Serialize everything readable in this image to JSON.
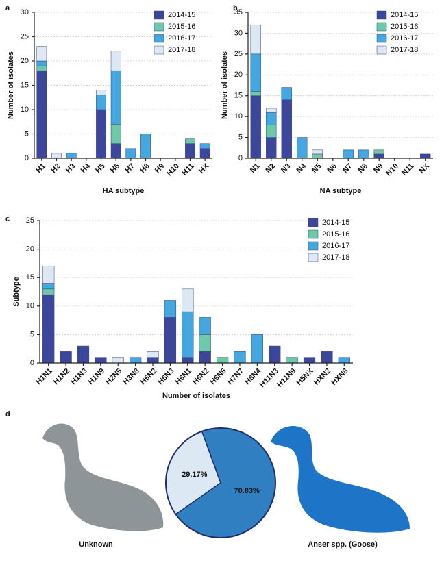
{
  "chart_data": [
    {
      "type": "bar",
      "stacked": true,
      "panel": "a",
      "xlabel": "HA subtype",
      "ylabel": "Number of isolates",
      "categories": [
        "H1",
        "H2",
        "H3",
        "H4",
        "H5",
        "H6",
        "H7",
        "H8",
        "H9",
        "H10",
        "H11",
        "HX"
      ],
      "series": [
        {
          "name": "2014-15",
          "color": "#3c479b",
          "values": [
            18,
            0,
            0,
            0,
            10,
            3,
            0,
            0,
            0,
            0,
            3,
            2
          ]
        },
        {
          "name": "2015-16",
          "color": "#6dc9a9",
          "values": [
            1,
            0,
            0,
            0,
            0,
            4,
            0,
            0,
            0,
            0,
            1,
            0
          ]
        },
        {
          "name": "2016-17",
          "color": "#45a7e0",
          "values": [
            1,
            0,
            1,
            0,
            3,
            11,
            2,
            5,
            0,
            0,
            0,
            1
          ]
        },
        {
          "name": "2017-18",
          "color": "#dde8f5",
          "values": [
            3,
            1,
            0,
            0,
            1,
            4,
            0,
            0,
            0,
            0,
            0,
            0
          ]
        }
      ],
      "ylim": [
        0,
        30
      ],
      "yticks": [
        0,
        5,
        10,
        15,
        20,
        25,
        30
      ],
      "grid": true,
      "legend": "upper right"
    },
    {
      "type": "bar",
      "stacked": true,
      "panel": "b",
      "xlabel": "NA subtype",
      "ylabel": "Number of isolates",
      "categories": [
        "N1",
        "N2",
        "N3",
        "N4",
        "N5",
        "N6",
        "N7",
        "N8",
        "N9",
        "N10",
        "N11",
        "NX"
      ],
      "series": [
        {
          "name": "2014-15",
          "color": "#3c479b",
          "values": [
            15,
            5,
            14,
            0,
            0,
            0,
            0,
            0,
            1,
            0,
            0,
            1
          ]
        },
        {
          "name": "2015-16",
          "color": "#6dc9a9",
          "values": [
            1,
            3,
            0,
            0,
            1,
            0,
            0,
            0,
            1,
            0,
            0,
            0
          ]
        },
        {
          "name": "2016-17",
          "color": "#45a7e0",
          "values": [
            9,
            3,
            3,
            5,
            0,
            0,
            2,
            2,
            0,
            0,
            0,
            0
          ]
        },
        {
          "name": "2017-18",
          "color": "#dde8f5",
          "values": [
            7,
            1,
            0,
            0,
            1,
            0,
            0,
            0,
            0,
            0,
            0,
            0
          ]
        }
      ],
      "ylim": [
        0,
        35
      ],
      "yticks": [
        0,
        5,
        10,
        15,
        20,
        25,
        30,
        35
      ],
      "grid": true,
      "legend": "upper right"
    },
    {
      "type": "bar",
      "stacked": true,
      "panel": "c",
      "xlabel": "Number of isolates",
      "ylabel": "Subtype",
      "categories": [
        "H1N1",
        "H1N2",
        "H1N3",
        "H1N9",
        "H2N5",
        "H3N8",
        "H5N2",
        "H5N3",
        "H6N1",
        "H6N2",
        "H6N5",
        "H7N7",
        "H8N4",
        "H11N3",
        "H11N9",
        "H5NX",
        "HXN2",
        "HXN8"
      ],
      "series": [
        {
          "name": "2014-15",
          "color": "#3c479b",
          "values": [
            12,
            2,
            3,
            1,
            0,
            0,
            1,
            8,
            1,
            2,
            0,
            0,
            0,
            3,
            0,
            1,
            2,
            0
          ]
        },
        {
          "name": "2015-16",
          "color": "#6dc9a9",
          "values": [
            1,
            0,
            0,
            0,
            0,
            0,
            0,
            0,
            0,
            3,
            1,
            0,
            0,
            0,
            1,
            0,
            0,
            0
          ]
        },
        {
          "name": "2016-17",
          "color": "#45a7e0",
          "values": [
            1,
            0,
            0,
            0,
            0,
            1,
            0,
            3,
            8,
            3,
            0,
            2,
            5,
            0,
            0,
            0,
            0,
            1
          ]
        },
        {
          "name": "2017-18",
          "color": "#dde8f5",
          "values": [
            3,
            0,
            0,
            0,
            1,
            0,
            1,
            0,
            4,
            0,
            0,
            0,
            0,
            0,
            0,
            0,
            0,
            0
          ]
        }
      ],
      "ylim": [
        0,
        25
      ],
      "yticks": [
        0,
        5,
        10,
        15,
        20,
        25
      ],
      "grid": true,
      "legend": "upper right"
    },
    {
      "type": "pie",
      "panel": "d",
      "categories": [
        "Unknown",
        "Anser spp. (Goose)"
      ],
      "values": [
        29.17,
        70.83
      ],
      "value_labels": [
        "29.17%",
        "70.83%"
      ],
      "colors": [
        "#dde8f5",
        "#2f7fc1"
      ]
    }
  ]
}
